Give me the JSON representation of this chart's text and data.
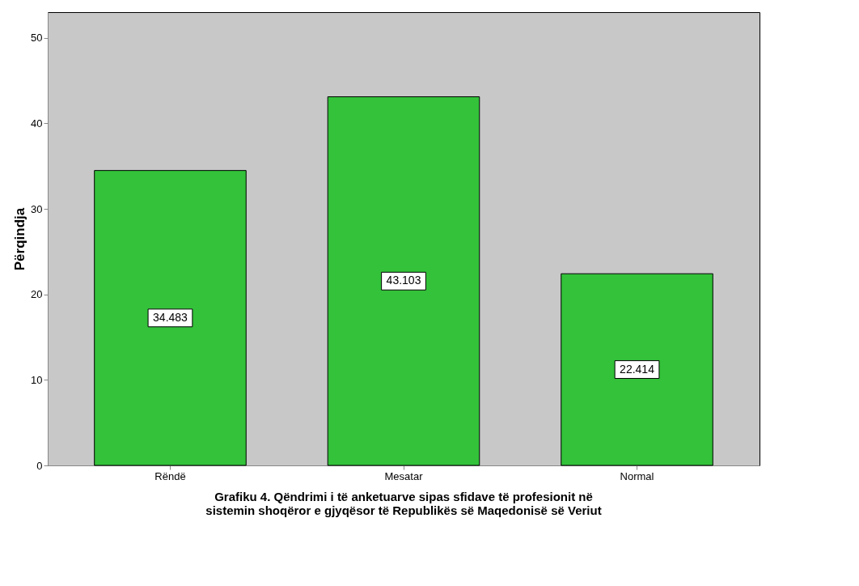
{
  "chart_data": {
    "type": "bar",
    "title": "Grafiku 4. Qëndrimi i të anketuarve sipas sfidave të profesionit në\nsistemin shoqëror e gjyqësor të Republikës së Maqedonisë së Veriut",
    "ylabel": "Përqindja",
    "categories": [
      "Rëndë",
      "Mesatar",
      "Normal"
    ],
    "values": [
      34.483,
      43.103,
      22.414
    ],
    "color": "#33c23a",
    "ylim": [
      0,
      53
    ],
    "yticks": [
      0,
      10,
      20,
      30,
      40,
      50
    ],
    "grid": false,
    "data_labels": true
  }
}
